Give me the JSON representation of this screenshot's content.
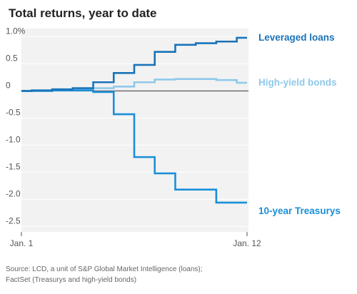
{
  "chart_data": {
    "type": "line",
    "title": "Total returns, year to date",
    "source": [
      "Source: LCD, a unit of S&P Global Market Intelligence (loans);",
      "FactSet (Treasurys and high-yield bonds)"
    ],
    "x_tick_labels": [
      "Jan. 1",
      "Jan. 12"
    ],
    "x": [
      "Jan. 1",
      "Jan. 2",
      "Jan. 3",
      "Jan. 4",
      "Jan. 5",
      "Jan. 6",
      "Jan. 7",
      "Jan. 8",
      "Jan. 9",
      "Jan. 10",
      "Jan. 11",
      "Jan. 12"
    ],
    "y_ticks": [
      1.0,
      0.5,
      0,
      -0.5,
      -1.0,
      -1.5,
      -2.0,
      -2.5
    ],
    "y_tick_labels": [
      "1.0%",
      "0.5",
      "0",
      "-0.5",
      "-1.0",
      "-1.5",
      "-2.0",
      "-2.5"
    ],
    "ylim": [
      -2.6,
      1.15
    ],
    "grid": true,
    "zero_line": true,
    "series": [
      {
        "name": "Leveraged loans",
        "color": "#1a73b8",
        "values": [
          0,
          0.01,
          0.03,
          0.05,
          0.16,
          0.33,
          0.48,
          0.72,
          0.85,
          0.88,
          0.91,
          0.98
        ]
      },
      {
        "name": "High-yield bonds",
        "color": "#8fc9ea",
        "values": [
          0,
          0.01,
          0.02,
          0.03,
          0.05,
          0.08,
          0.16,
          0.21,
          0.22,
          0.22,
          0.2,
          0.15
        ]
      },
      {
        "name": "10-year Treasurys",
        "color": "#1a8fd8",
        "values": [
          0,
          0.0,
          0.01,
          0.01,
          -0.02,
          -0.43,
          -1.22,
          -1.52,
          -1.82,
          -1.82,
          -2.06,
          -2.06
        ]
      }
    ]
  }
}
